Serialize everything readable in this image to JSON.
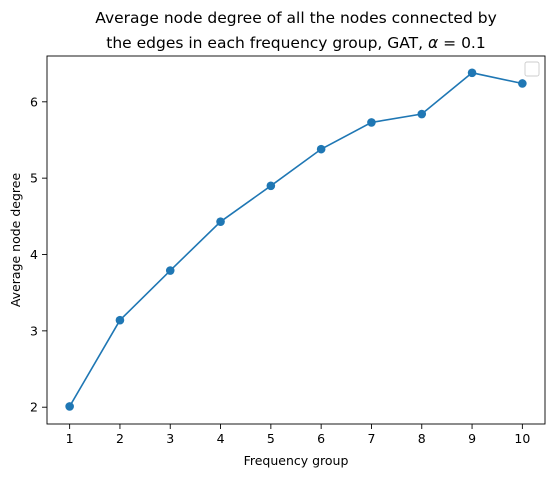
{
  "chart_data": {
    "type": "line",
    "title_line1": "Average node degree of all the nodes connected by",
    "title_line2_prefix": "the edges in each frequency group, GAT, ",
    "title_alpha": "α",
    "title_line2_suffix": " = 0.1",
    "xlabel": "Frequency group",
    "ylabel": "Average node degree",
    "x": [
      1,
      2,
      3,
      4,
      5,
      6,
      7,
      8,
      9,
      10
    ],
    "series": [
      {
        "values": [
          2.01,
          3.14,
          3.79,
          4.43,
          4.9,
          5.38,
          5.73,
          5.84,
          6.38,
          6.24
        ],
        "color": "#1f77b4",
        "marker": "circle"
      }
    ],
    "xticks": [
      1,
      2,
      3,
      4,
      5,
      6,
      7,
      8,
      9,
      10
    ],
    "yticks": [
      2,
      3,
      4,
      5,
      6
    ],
    "xlim": [
      0.55,
      10.45
    ],
    "ylim": [
      1.78,
      6.6
    ],
    "grid": false,
    "legend": {
      "placement": "top-right",
      "entries": []
    }
  }
}
